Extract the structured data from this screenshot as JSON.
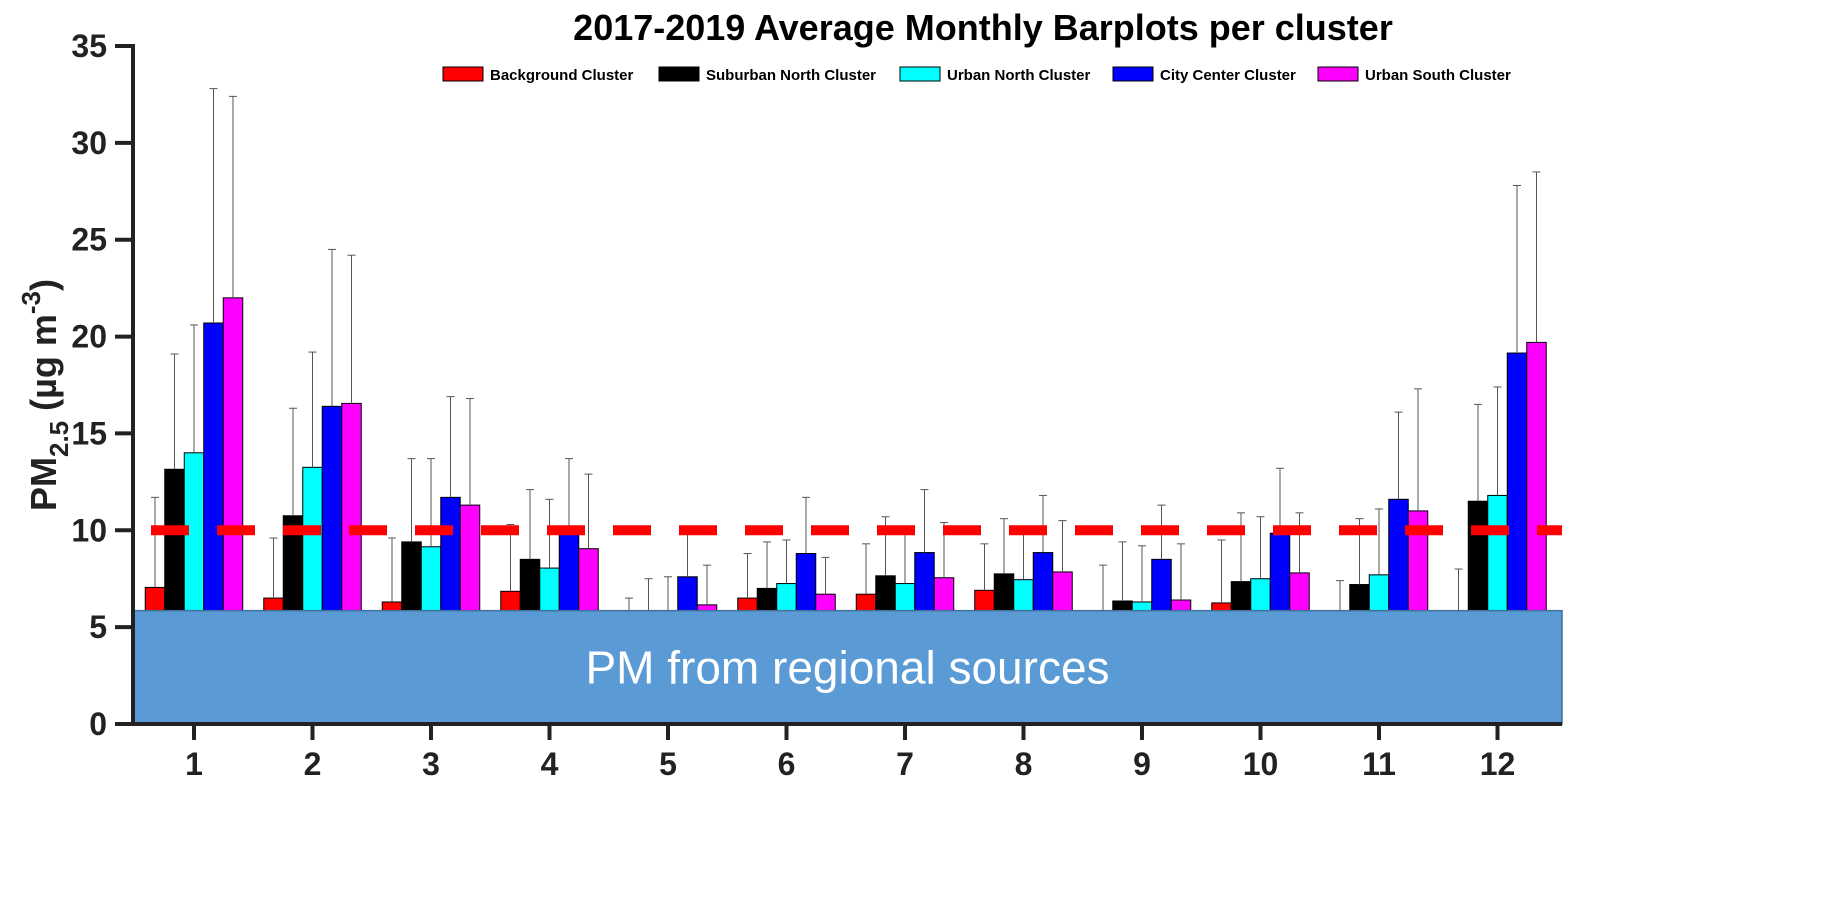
{
  "chart_data": {
    "type": "bar",
    "title": "2017-2019 Average Monthly Barplots per cluster",
    "ylabel": {
      "main": "PM",
      "sub": "2.5",
      "unit_open": " (µg m",
      "sup": "-3",
      "unit_close": ")"
    },
    "xlabel": "",
    "ylim": [
      0,
      35
    ],
    "yticks": [
      0,
      5,
      10,
      15,
      20,
      25,
      30,
      35
    ],
    "categories": [
      "1",
      "2",
      "3",
      "4",
      "5",
      "6",
      "7",
      "8",
      "9",
      "10",
      "11",
      "12"
    ],
    "series": [
      {
        "name": "Background Cluster",
        "color": "#ff0000",
        "values": [
          7.05,
          6.5,
          6.3,
          6.85,
          5.6,
          6.5,
          6.7,
          6.9,
          5.7,
          6.25,
          5.6,
          5.7
        ],
        "errors": [
          11.7,
          9.6,
          9.6,
          10.3,
          6.5,
          8.8,
          9.3,
          9.3,
          8.2,
          9.5,
          7.4,
          8.0
        ]
      },
      {
        "name": "Suburban North Cluster",
        "color": "#000000",
        "values": [
          13.15,
          10.75,
          9.4,
          8.5,
          5.7,
          7.0,
          7.65,
          7.75,
          6.35,
          7.35,
          7.2,
          11.5
        ],
        "errors": [
          19.1,
          16.3,
          13.7,
          12.1,
          7.5,
          9.4,
          10.7,
          10.6,
          9.4,
          10.9,
          10.6,
          16.5
        ]
      },
      {
        "name": "Urban North Cluster",
        "color": "#00ffff",
        "values": [
          14.0,
          13.25,
          9.15,
          8.05,
          5.8,
          7.25,
          7.25,
          7.45,
          6.3,
          7.5,
          7.7,
          11.8
        ],
        "errors": [
          20.6,
          19.2,
          13.7,
          11.6,
          7.6,
          9.5,
          9.8,
          9.9,
          9.2,
          10.7,
          11.1,
          17.4
        ]
      },
      {
        "name": "City Center Cluster",
        "color": "#0000ff",
        "values": [
          20.7,
          16.4,
          11.7,
          10.05,
          7.6,
          8.8,
          8.85,
          8.85,
          8.5,
          9.85,
          11.6,
          19.15
        ],
        "errors": [
          32.8,
          24.5,
          16.9,
          13.7,
          10.2,
          11.7,
          12.1,
          11.8,
          11.3,
          13.2,
          16.1,
          27.8
        ]
      },
      {
        "name": "Urban South Cluster",
        "color": "#ff00ff",
        "values": [
          22.0,
          16.55,
          11.3,
          9.05,
          6.15,
          6.7,
          7.55,
          7.85,
          6.4,
          7.8,
          11.0,
          19.7
        ],
        "errors": [
          32.4,
          24.2,
          16.8,
          12.9,
          8.2,
          8.6,
          10.4,
          10.5,
          9.3,
          10.9,
          17.3,
          28.5
        ]
      }
    ],
    "reference_line": {
      "value": 10,
      "color": "#ff0000",
      "style": "dashed"
    },
    "regional_band": {
      "from": 0,
      "to": 5.85,
      "color": "#5b9bd5",
      "label": "PM from regional sources"
    },
    "legend": {
      "position": "top",
      "orientation": "horizontal"
    },
    "grid": false
  }
}
